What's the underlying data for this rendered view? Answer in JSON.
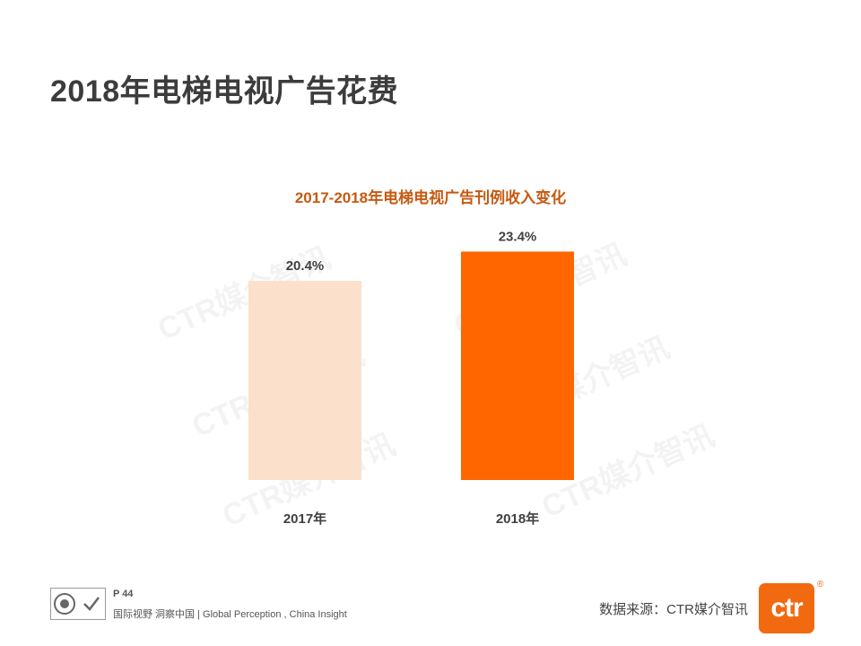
{
  "page": {
    "title": "2018年电梯电视广告花费",
    "footer_page": "P 44",
    "footer_slogan": "国际视野 洞察中国 | Global Perception , China Insight",
    "source": "数据来源：CTR媒介智讯",
    "logo_text": "ctr",
    "logo_mark": "®",
    "watermark_text": "CTR媒介智讯"
  },
  "colors": {
    "accent": "#f26a10",
    "title_orange": "#c55a11",
    "bar_light": "#fbe0cc",
    "bar_dark": "#ff6600"
  },
  "icons": [
    "certification-badge-icon",
    "ctr-logo"
  ],
  "chart_data": {
    "type": "bar",
    "title": "2017-2018年电梯电视广告刊例收入变化",
    "categories": [
      "2017年",
      "2018年"
    ],
    "values": [
      20.4,
      23.4
    ],
    "data_labels": [
      "20.4%",
      "23.4%"
    ],
    "bar_colors": [
      "#fbe0cc",
      "#ff6600"
    ],
    "ylim": [
      0,
      25
    ],
    "xlabel": "",
    "ylabel": "",
    "grid": false,
    "legend": "none"
  }
}
